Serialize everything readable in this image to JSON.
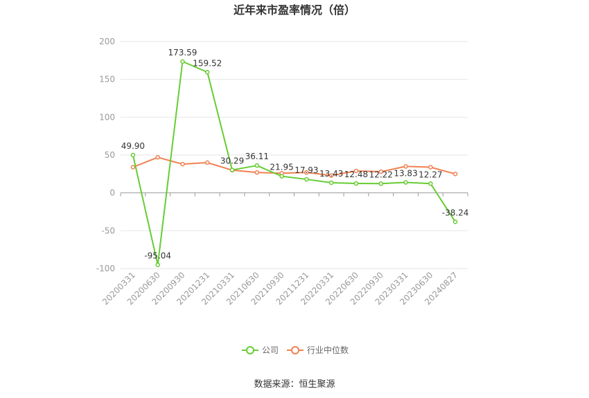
{
  "chart_data": {
    "type": "line",
    "title": "近年来市盈率情况（倍）",
    "categories": [
      "20200331",
      "20200630",
      "20200930",
      "20201231",
      "20210331",
      "20210630",
      "20210930",
      "20211231",
      "20220331",
      "20220630",
      "20220930",
      "20230331",
      "20230630",
      "20240827"
    ],
    "series": [
      {
        "name": "公司",
        "color": "#66cc33",
        "values": [
          49.9,
          -95.04,
          173.59,
          159.52,
          30.29,
          36.11,
          21.95,
          17.93,
          13.43,
          12.48,
          12.22,
          13.83,
          12.27,
          -38.24
        ],
        "labels": [
          "49.90",
          "-95.04",
          "173.59",
          "159.52",
          "30.29",
          "36.11",
          "21.95",
          "17.93",
          "13.43",
          "12.48",
          "12.22",
          "13.83",
          "12.27",
          "-38.24"
        ]
      },
      {
        "name": "行业中位数",
        "color": "#f08050",
        "values": [
          34,
          47,
          38,
          40,
          30,
          27,
          26,
          27,
          23,
          29,
          28,
          35,
          34,
          25
        ]
      }
    ],
    "yticks": [
      200,
      150,
      100,
      50,
      0,
      -50,
      -100
    ],
    "ylim": [
      -100,
      200
    ],
    "grid": true,
    "legend": "bottom-center"
  },
  "source_text": "数据来源：恒生聚源"
}
